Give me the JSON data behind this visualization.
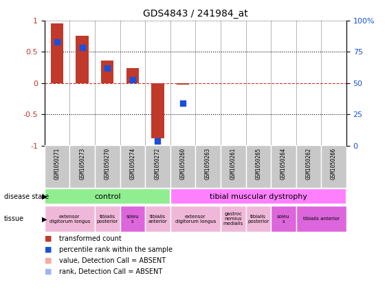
{
  "title": "GDS4843 / 241984_at",
  "samples": [
    "GSM1050271",
    "GSM1050273",
    "GSM1050270",
    "GSM1050274",
    "GSM1050272",
    "GSM1050260",
    "GSM1050263",
    "GSM1050261",
    "GSM1050265",
    "GSM1050264",
    "GSM1050262",
    "GSM1050266"
  ],
  "bar_values": [
    0.95,
    0.75,
    0.36,
    0.24,
    -0.88,
    -0.03,
    0.0,
    0.0,
    0.0,
    0.0,
    0.0,
    0.0
  ],
  "dot_values": [
    0.65,
    0.57,
    0.24,
    0.05,
    -0.93,
    -0.32,
    null,
    null,
    null,
    null,
    null,
    null
  ],
  "bar_color": "#c0392b",
  "dot_color": "#1a4fdb",
  "bar_absent_color": "#f4a9a0",
  "dot_absent_color": "#a0b4f0",
  "ylim": [
    -1,
    1
  ],
  "yticks_left": [
    -1,
    -0.5,
    0,
    0.5,
    1
  ],
  "yticks_left_labels": [
    "-1",
    "-0.5",
    "0",
    "0.5",
    "1"
  ],
  "yticks_right": [
    0,
    25,
    50,
    75,
    100
  ],
  "yticks_right_labels": [
    "0",
    "25",
    "50",
    "75",
    "100%"
  ],
  "disease_state_groups": [
    {
      "label": "control",
      "start": 0,
      "end": 4,
      "color": "#90ee90"
    },
    {
      "label": "tibial muscular dystrophy",
      "start": 5,
      "end": 11,
      "color": "#ff80ff"
    }
  ],
  "tissue_groups": [
    {
      "label": "extensor\ndigitorum longus",
      "start": 0,
      "end": 1,
      "color": "#f0b8d8"
    },
    {
      "label": "tibialis\nposterior",
      "start": 2,
      "end": 2,
      "color": "#f0b8d8"
    },
    {
      "label": "soleu\ns",
      "start": 3,
      "end": 3,
      "color": "#dd66dd"
    },
    {
      "label": "tibialis\nanterior",
      "start": 4,
      "end": 4,
      "color": "#f0b8d8"
    },
    {
      "label": "extensor\ndigitorum longus",
      "start": 5,
      "end": 6,
      "color": "#f0b8d8"
    },
    {
      "label": "gastroc\nnemius\nmedialis",
      "start": 7,
      "end": 7,
      "color": "#f0b8d8"
    },
    {
      "label": "tibialis\nposterior",
      "start": 8,
      "end": 8,
      "color": "#f0b8d8"
    },
    {
      "label": "soleu\ns",
      "start": 9,
      "end": 9,
      "color": "#dd66dd"
    },
    {
      "label": "tibialis anterior",
      "start": 10,
      "end": 11,
      "color": "#dd66dd"
    }
  ],
  "legend_items": [
    {
      "label": "transformed count",
      "color": "#c0392b"
    },
    {
      "label": "percentile rank within the sample",
      "color": "#1a4fdb"
    },
    {
      "label": "value, Detection Call = ABSENT",
      "color": "#f4a9a0"
    },
    {
      "label": "rank, Detection Call = ABSENT",
      "color": "#a0b4f0"
    }
  ],
  "left_label_color": "#c0392b",
  "right_label_color": "#1a4fdb",
  "bar_width": 0.5,
  "dot_size": 28,
  "sample_bg_color": "#d0d0d0",
  "tick_label_bg": "#c8c8c8"
}
